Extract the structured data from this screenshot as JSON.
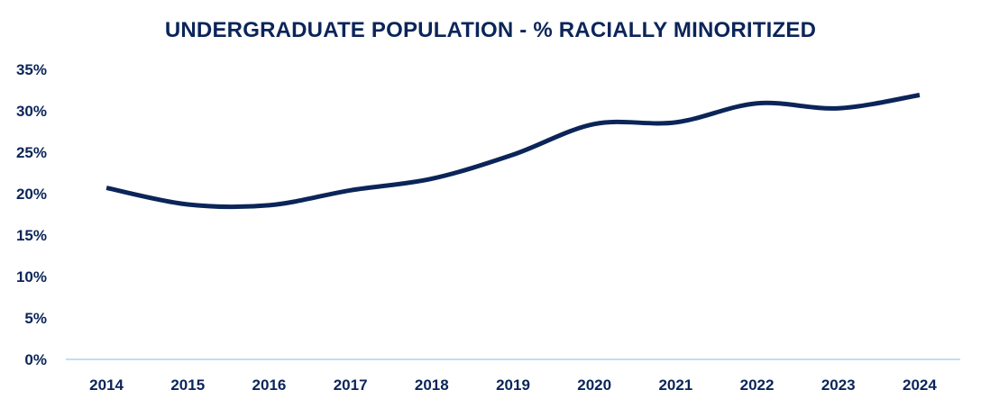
{
  "chart_data": {
    "type": "line",
    "title": "UNDERGRADUATE POPULATION - % RACIALLY MINORITIZED",
    "xlabel": "",
    "ylabel": "",
    "categories": [
      "2014",
      "2015",
      "2016",
      "2017",
      "2018",
      "2019",
      "2020",
      "2021",
      "2022",
      "2023",
      "2024"
    ],
    "values": [
      20.7,
      18.7,
      18.6,
      20.4,
      21.8,
      24.7,
      28.4,
      28.6,
      30.9,
      30.3,
      31.9
    ],
    "ylim": [
      0,
      35
    ],
    "yticks": [
      0,
      5,
      10,
      15,
      20,
      25,
      30,
      35
    ],
    "ytick_labels": [
      "0%",
      "5%",
      "10%",
      "15%",
      "20%",
      "25%",
      "30%",
      "35%"
    ],
    "smoothed": true,
    "grid": false,
    "legend": "none",
    "colors": {
      "line": "#0b2559",
      "axis": "#bfe0f5",
      "text": "#0b2559"
    }
  }
}
